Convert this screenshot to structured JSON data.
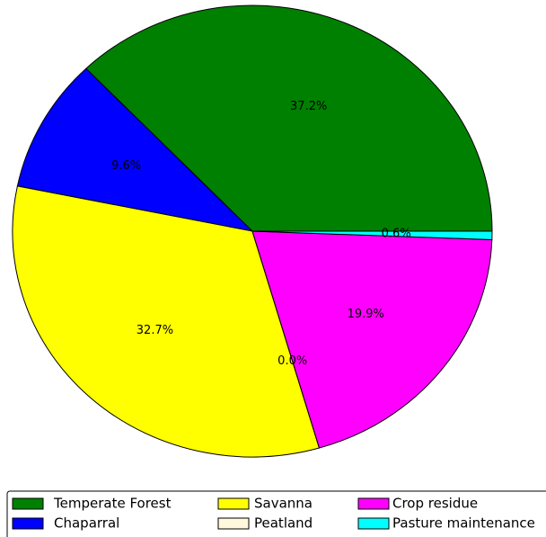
{
  "chart_data": {
    "type": "pie",
    "categories": [
      "Temperate Forest",
      "Chaparral",
      "Savanna",
      "Peatland",
      "Crop residue",
      "Pasture maintenance"
    ],
    "values": [
      37.2,
      9.6,
      32.7,
      0.0,
      19.9,
      0.6
    ],
    "value_labels": [
      "37.2%",
      "9.6%",
      "32.7%",
      "0.0%",
      "19.9%",
      "0.6%"
    ],
    "colors": [
      "#008000",
      "#0000ff",
      "#ffff00",
      "#fff8dc",
      "#ff00ff",
      "#00ffff"
    ],
    "legend": "bottom"
  }
}
